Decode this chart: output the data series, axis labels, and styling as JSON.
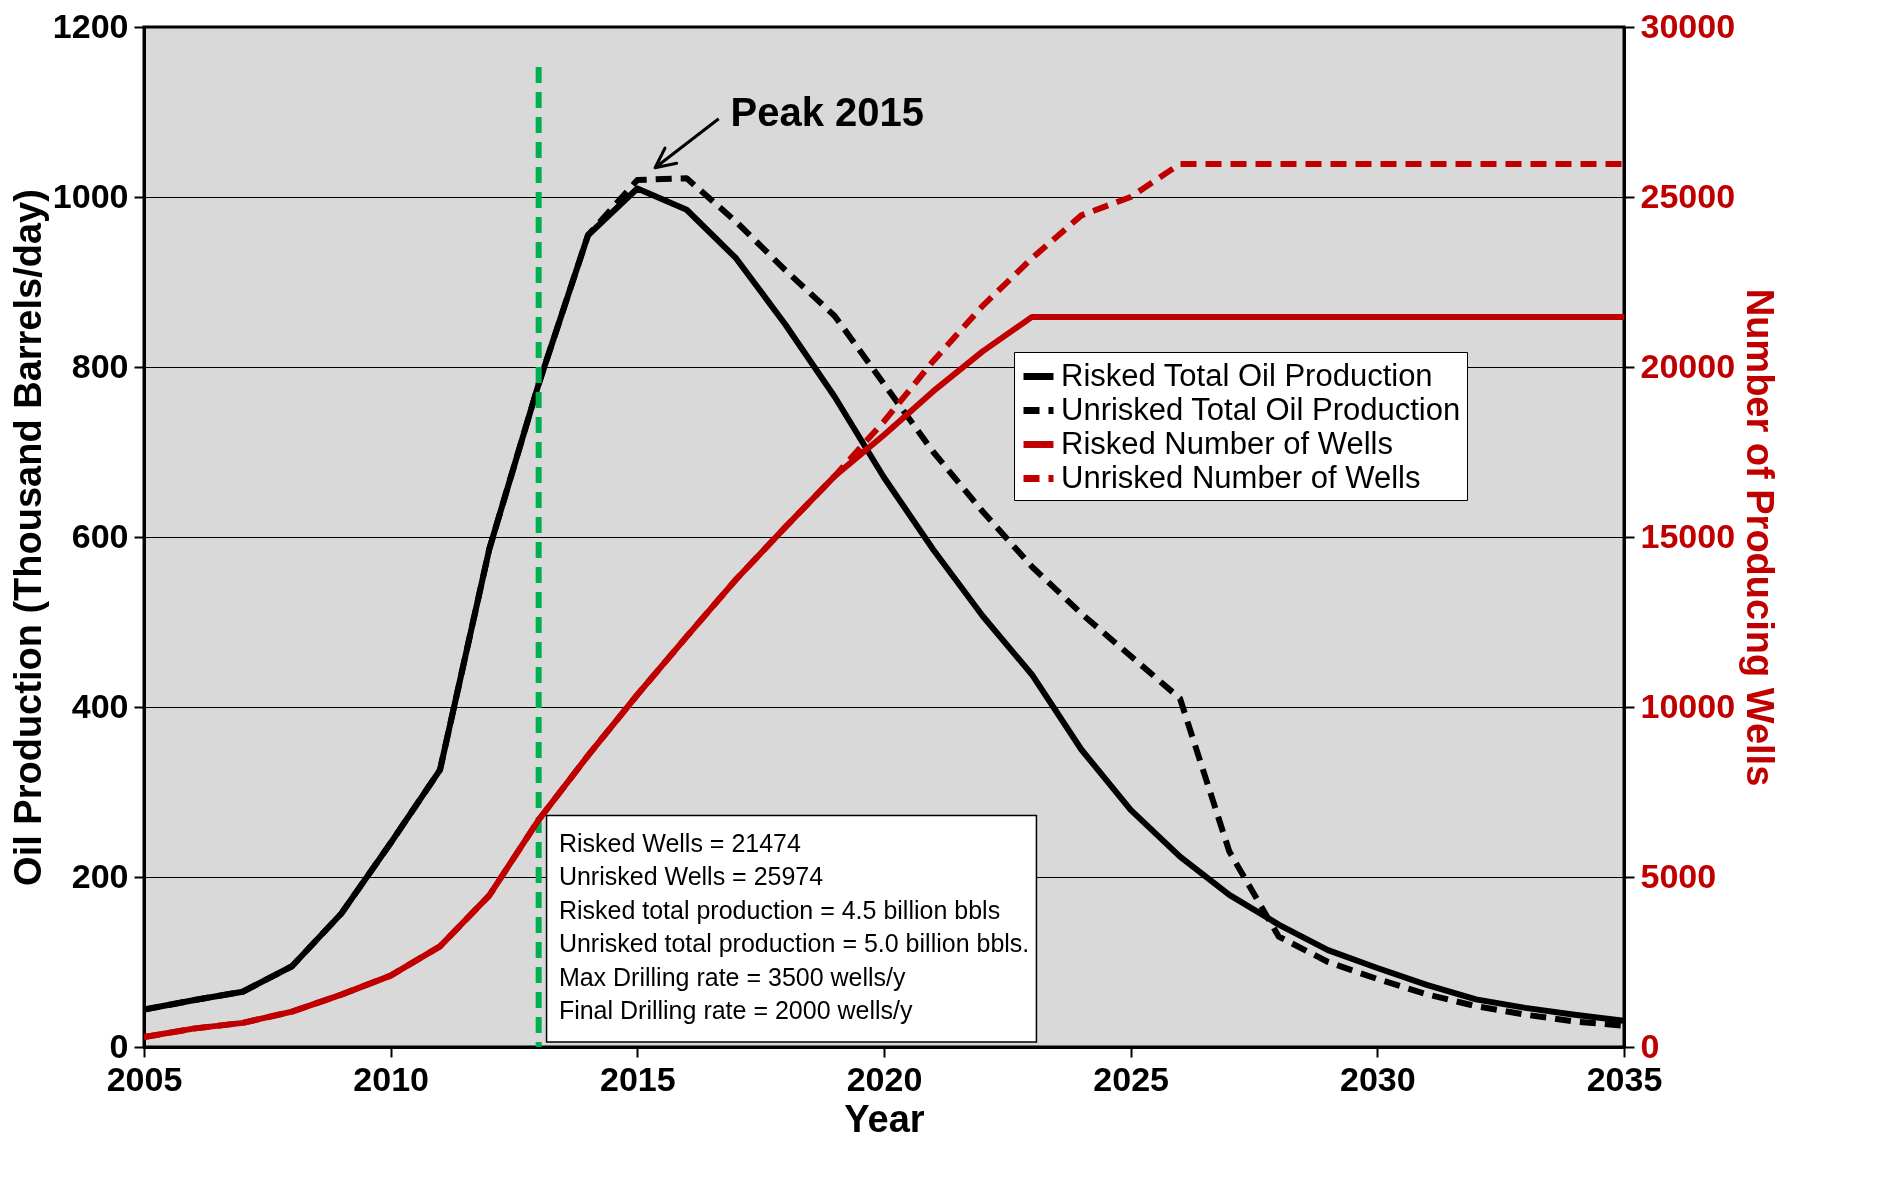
{
  "chart_data": {
    "type": "line",
    "xlabel": "Year",
    "ylabel": "Oil Production (Thousand Barrels/day)",
    "y2label": "Number of Producing Wells",
    "x": [
      2005,
      2006,
      2007,
      2008,
      2009,
      2010,
      2011,
      2012,
      2013,
      2014,
      2015,
      2016,
      2017,
      2018,
      2019,
      2020,
      2021,
      2022,
      2023,
      2024,
      2025,
      2026,
      2027,
      2028,
      2029,
      2030,
      2031,
      2032,
      2033,
      2034,
      2035
    ],
    "series": [
      {
        "name": "Risked Total Oil Production",
        "color": "#000000",
        "line_style": "solid",
        "values": [
          44,
          55,
          65,
          95,
          157,
          240,
          326,
          586,
          780,
          955,
          1010,
          985,
          928,
          850,
          765,
          670,
          585,
          507,
          438,
          350,
          279,
          224,
          179,
          144,
          114,
          93,
          73,
          56,
          46,
          38,
          31
        ]
      },
      {
        "name": "Unrisked Total Oil Production",
        "color": "#000000",
        "line_style": "dashed",
        "values": [
          44,
          55,
          65,
          95,
          157,
          240,
          326,
          586,
          780,
          955,
          1020,
          1022,
          971,
          914,
          860,
          780,
          700,
          630,
          565,
          510,
          460,
          410,
          230,
          130,
          100,
          80,
          62,
          48,
          38,
          30,
          25
        ]
      },
      {
        "name": "Risked Number of  Wells",
        "color": "#c00000",
        "line_style": "solid",
        "axis": "y2",
        "values": [
          290,
          540,
          710,
          1040,
          1540,
          2100,
          2960,
          4460,
          6680,
          8570,
          10360,
          12070,
          13750,
          15290,
          16790,
          18000,
          19290,
          20460,
          21474,
          21474,
          21474,
          21474,
          21474,
          21474,
          21474,
          21474,
          21474,
          21474,
          21474,
          21474,
          21474
        ]
      },
      {
        "name": "Unrisked Number of  Wells",
        "color": "#c00000",
        "line_style": "dashed",
        "axis": "y2",
        "values": [
          290,
          540,
          710,
          1040,
          1540,
          2100,
          2960,
          4460,
          6680,
          8570,
          10360,
          12070,
          13750,
          15290,
          16790,
          18400,
          20180,
          21800,
          23200,
          24460,
          25000,
          25974,
          25974,
          25974,
          25974,
          25974,
          25974,
          25974,
          25974,
          25974,
          25974
        ]
      }
    ],
    "xlim": [
      2005,
      2035
    ],
    "xticks": [
      2005,
      2010,
      2015,
      2020,
      2025,
      2030,
      2035
    ],
    "ylim": [
      0,
      1200
    ],
    "yticks": [
      0,
      200,
      400,
      600,
      800,
      1000,
      1200
    ],
    "y2lim": [
      0,
      30000
    ],
    "y2ticks": [
      0,
      5000,
      10000,
      15000,
      20000,
      25000,
      30000
    ],
    "ref_lines": [
      {
        "axis": "x",
        "value": 2013,
        "color": "#00b050",
        "line_style": "dashed"
      }
    ],
    "annotations": [
      {
        "text": "Peak 2015",
        "x": 2015,
        "y": 1020
      },
      "Risked Wells = 21474\nUnrisked Wells = 25974\nRisked total production = 4.5 billion bbls\nUnrisked total production = 5.0 billion bbls.\nMax Drilling rate = 3500 wells/y\nFinal Drilling rate = 2000 wells/y"
    ],
    "grid": "y",
    "legend": "right",
    "marker": "none"
  }
}
